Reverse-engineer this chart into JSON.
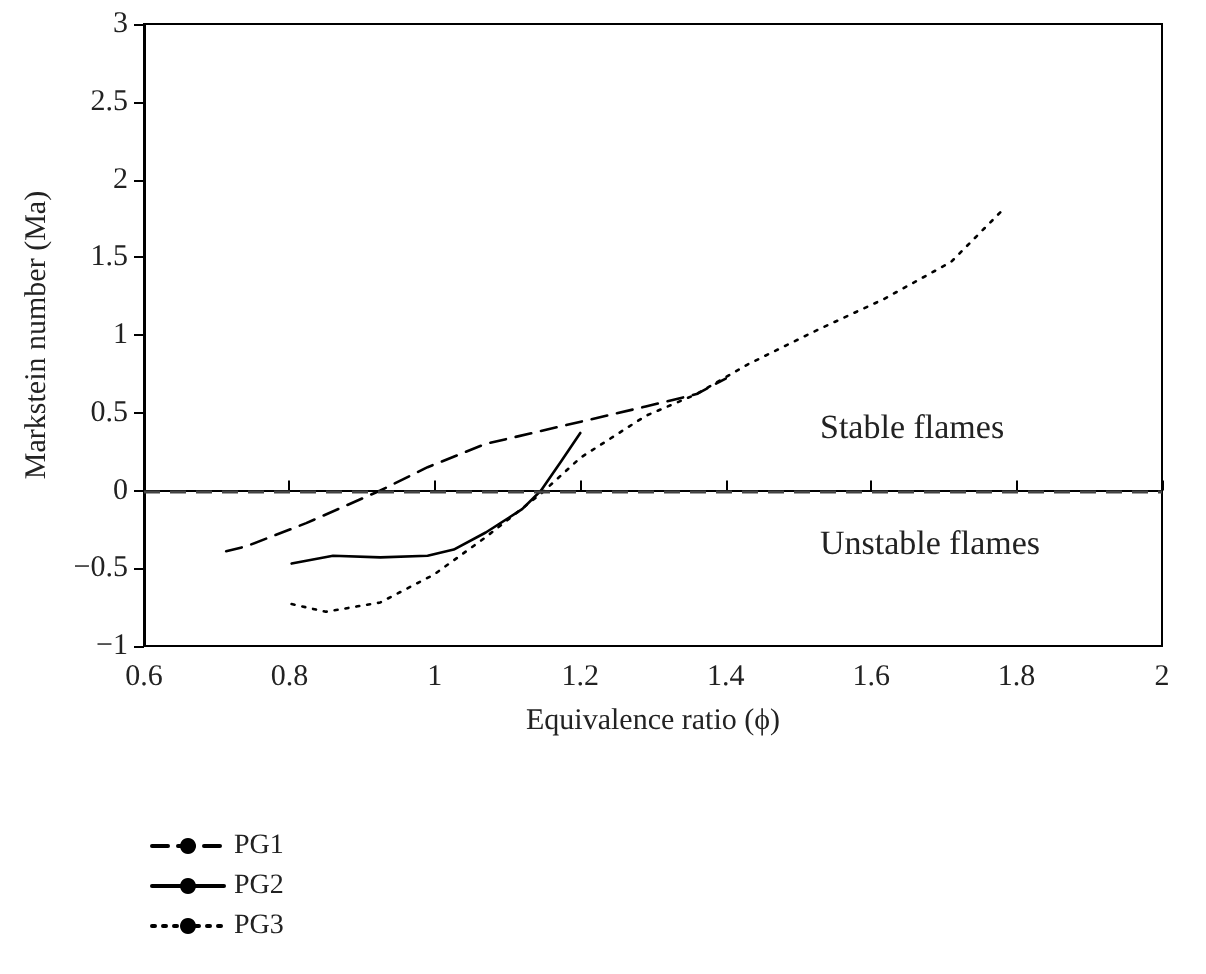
{
  "chart_data": {
    "type": "line",
    "xlabel": "Equivalence ratio (ϕ)",
    "ylabel": "Markstein number (Ma)",
    "xlim": [
      0.6,
      2
    ],
    "xticks": [
      0.6,
      0.8,
      1,
      1.2,
      1.4,
      1.6,
      1.8,
      2
    ],
    "ylim": [
      -1,
      3
    ],
    "yticks": [
      {
        "value": -1,
        "label": "−1"
      },
      {
        "value": -0.5,
        "label": "−0.5"
      },
      0,
      0.5,
      1,
      1.5,
      2,
      2.5,
      3
    ],
    "grid": false,
    "legend": "bottom left",
    "marker": "none",
    "series": [
      {
        "name": "PG1",
        "color": "#000000",
        "line_style": "dashed",
        "x": [
          0.713,
          0.74,
          0.823,
          0.925,
          0.99,
          1.07,
          1.18,
          1.29,
          1.36,
          1.4
        ],
        "values": [
          -0.39,
          -0.36,
          -0.21,
          0,
          0.15,
          0.3,
          0.42,
          0.54,
          0.62,
          0.72
        ]
      },
      {
        "name": "PG2",
        "color": "#000000",
        "line_style": "solid",
        "x": [
          0.803,
          0.86,
          0.925,
          0.99,
          1.026,
          1.07,
          1.12,
          1.146,
          1.174,
          1.2
        ],
        "values": [
          -0.47,
          -0.42,
          -0.43,
          -0.42,
          -0.38,
          -0.27,
          -0.12,
          0,
          0.19,
          0.37
        ]
      },
      {
        "name": "PG3",
        "color": "#000000",
        "line_style": "dotted",
        "x": [
          0.803,
          0.85,
          0.925,
          0.999,
          1.07,
          1.146,
          1.2,
          1.29,
          1.36,
          1.43,
          1.525,
          1.617,
          1.71,
          1.78
        ],
        "values": [
          -0.73,
          -0.78,
          -0.72,
          -0.54,
          -0.3,
          -0.02,
          0.21,
          0.48,
          0.62,
          0.81,
          1.03,
          1.23,
          1.47,
          1.8
        ]
      }
    ],
    "ref_lines": [
      {
        "axis": "y",
        "value": 0,
        "color": "#444444",
        "line_style": "dashed"
      }
    ],
    "annotations": [
      "Stable flames",
      "Unstable flames"
    ]
  }
}
